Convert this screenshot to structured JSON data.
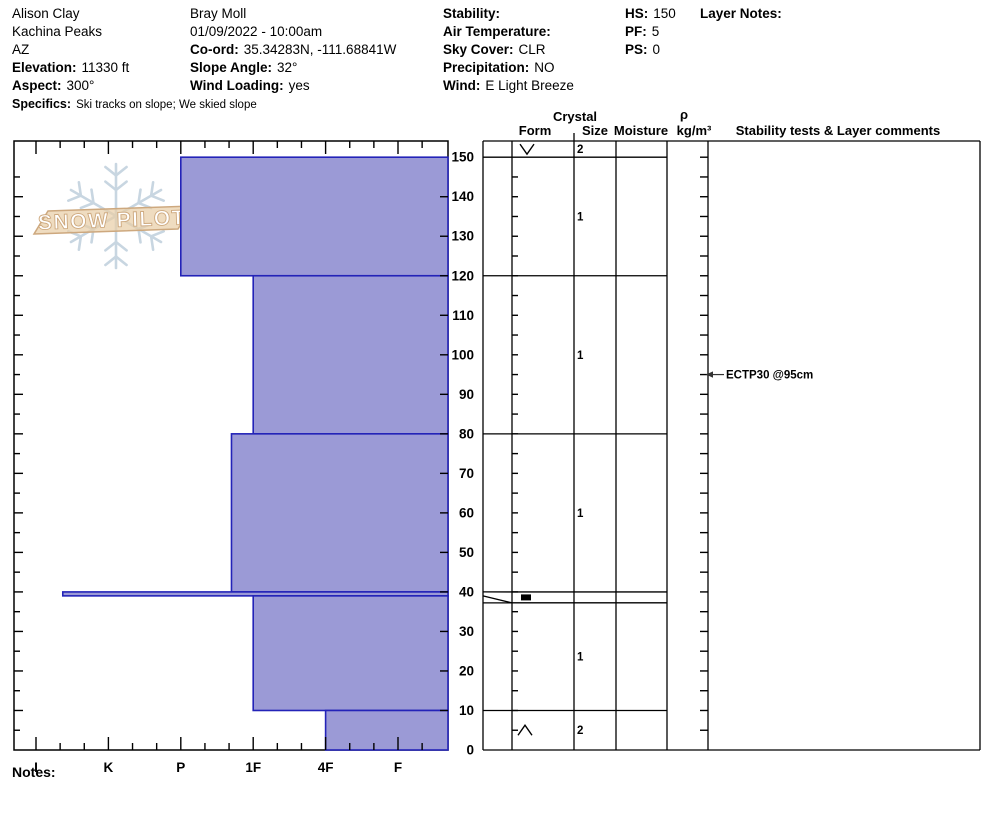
{
  "header": {
    "col1": {
      "lines": [
        {
          "label": "",
          "value": "Alison Clay"
        },
        {
          "label": "",
          "value": "Kachina Peaks"
        },
        {
          "label": "",
          "value": "AZ"
        },
        {
          "label": "Elevation:",
          "value": "11330 ft"
        },
        {
          "label": "Aspect:",
          "value": "300°"
        }
      ],
      "specifics": {
        "label": "Specifics:",
        "value": "Ski tracks on slope; We skied slope"
      }
    },
    "col2": {
      "lines": [
        {
          "label": "",
          "value": "Bray Moll"
        },
        {
          "label": "",
          "value": "01/09/2022 - 10:00am"
        },
        {
          "label": "Co-ord:",
          "value": "35.34283N, -111.68841W"
        },
        {
          "label": "Slope Angle:",
          "value": "32°"
        },
        {
          "label": "Wind Loading:",
          "value": "yes"
        }
      ]
    },
    "col3": {
      "lines": [
        {
          "label": "Stability:",
          "value": ""
        },
        {
          "label": "Air Temperature:",
          "value": ""
        },
        {
          "label": "Sky Cover:",
          "value": "CLR"
        },
        {
          "label": "Precipitation:",
          "value": "NO"
        },
        {
          "label": "Wind:",
          "value": "E Light Breeze"
        }
      ]
    },
    "col4": {
      "lines": [
        {
          "label": "HS:",
          "value": "150"
        },
        {
          "label": "PF:",
          "value": "5"
        },
        {
          "label": "PS:",
          "value": "0"
        }
      ]
    },
    "col5": {
      "lines": [
        {
          "label": "Layer Notes:",
          "value": ""
        }
      ]
    }
  },
  "notes_label": "Notes:",
  "chart_data": {
    "type": "bar",
    "subtype": "snow-profile-hardness",
    "title": "",
    "hs_cm": 150,
    "hardness_axis": {
      "categories": [
        "I",
        "K",
        "P",
        "1F",
        "4F",
        "F"
      ],
      "orientation": "hard-on-left"
    },
    "depth_axis": {
      "min": 0,
      "max": 150,
      "tick_step": 10,
      "unit": "cm"
    },
    "surface_row": {
      "grain_form": "SH",
      "grain_form_glyph": "∨",
      "grain_size_mm": "2"
    },
    "layers": [
      {
        "top_cm": 150,
        "bottom_cm": 120,
        "hardness": "P",
        "hardness_index": 2.0,
        "grain_size_mm": "1"
      },
      {
        "top_cm": 120,
        "bottom_cm": 80,
        "hardness": "1F",
        "hardness_index": 3.0,
        "grain_size_mm": "1"
      },
      {
        "top_cm": 80,
        "bottom_cm": 40,
        "hardness": "1F+",
        "hardness_index": 2.7,
        "grain_size_mm": "1"
      },
      {
        "top_cm": 40,
        "bottom_cm": 39,
        "hardness": "I-",
        "hardness_index": 0.37,
        "grain_form": "IF",
        "grain_form_glyph": "■"
      },
      {
        "top_cm": 39,
        "bottom_cm": 10,
        "hardness": "1F",
        "hardness_index": 3.0,
        "grain_size_mm": "1"
      },
      {
        "top_cm": 10,
        "bottom_cm": 0,
        "hardness": "4F",
        "hardness_index": 4.0,
        "grain_form": "DH",
        "grain_form_glyph": "∧",
        "grain_size_mm": "2"
      }
    ],
    "table_headers": {
      "crystal": "Crystal",
      "form": "Form",
      "size": "Size",
      "moisture": "Moisture",
      "rho": "ρ",
      "rho_units": "kg/m³",
      "stability": "Stability tests & Layer comments"
    },
    "stability_tests": [
      {
        "label": "ECTP30 @95cm",
        "depth_cm": 95
      }
    ],
    "watermark": {
      "text": "SNOW PILOT"
    },
    "colors": {
      "bar_fill": "#9b9ad6",
      "bar_stroke": "#2323b8",
      "logo_flake": "#c6d4e0",
      "logo_band_fill": "#e8cda5",
      "logo_band_stroke": "#cda87e",
      "logo_text": "#ffffff"
    }
  }
}
